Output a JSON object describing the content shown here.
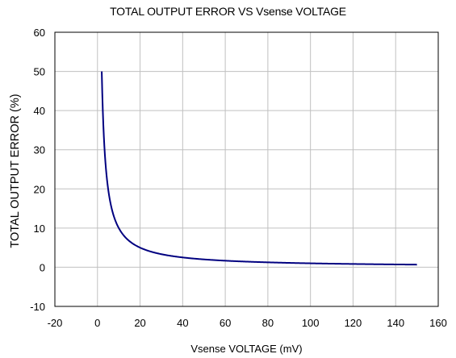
{
  "chart_data": {
    "type": "line",
    "title": "TOTAL OUTPUT ERROR VS Vsense VOLTAGE",
    "xlabel": "Vsense VOLTAGE (mV)",
    "ylabel": "TOTAL OUTPUT ERROR (%)",
    "xlim": [
      -20,
      160
    ],
    "ylim": [
      -10,
      60
    ],
    "x_ticks": [
      -20,
      0,
      20,
      40,
      60,
      80,
      100,
      120,
      140,
      160
    ],
    "y_ticks": [
      -10,
      0,
      10,
      20,
      30,
      40,
      50,
      60
    ],
    "grid": true,
    "legend": "none",
    "series": [
      {
        "color": "#000080",
        "x": [
          2,
          3,
          4,
          5,
          6,
          8,
          10,
          12,
          15,
          20,
          25,
          30,
          40,
          50,
          60,
          70,
          80,
          90,
          100,
          110,
          120,
          130,
          140,
          150
        ],
        "y": [
          50,
          33,
          25,
          20,
          16.5,
          12.5,
          10,
          8.3,
          6.7,
          5,
          4,
          3.3,
          2.5,
          2,
          1.7,
          1.4,
          1.25,
          1.1,
          1,
          0.9,
          0.83,
          0.77,
          0.71,
          0.67
        ]
      }
    ]
  }
}
